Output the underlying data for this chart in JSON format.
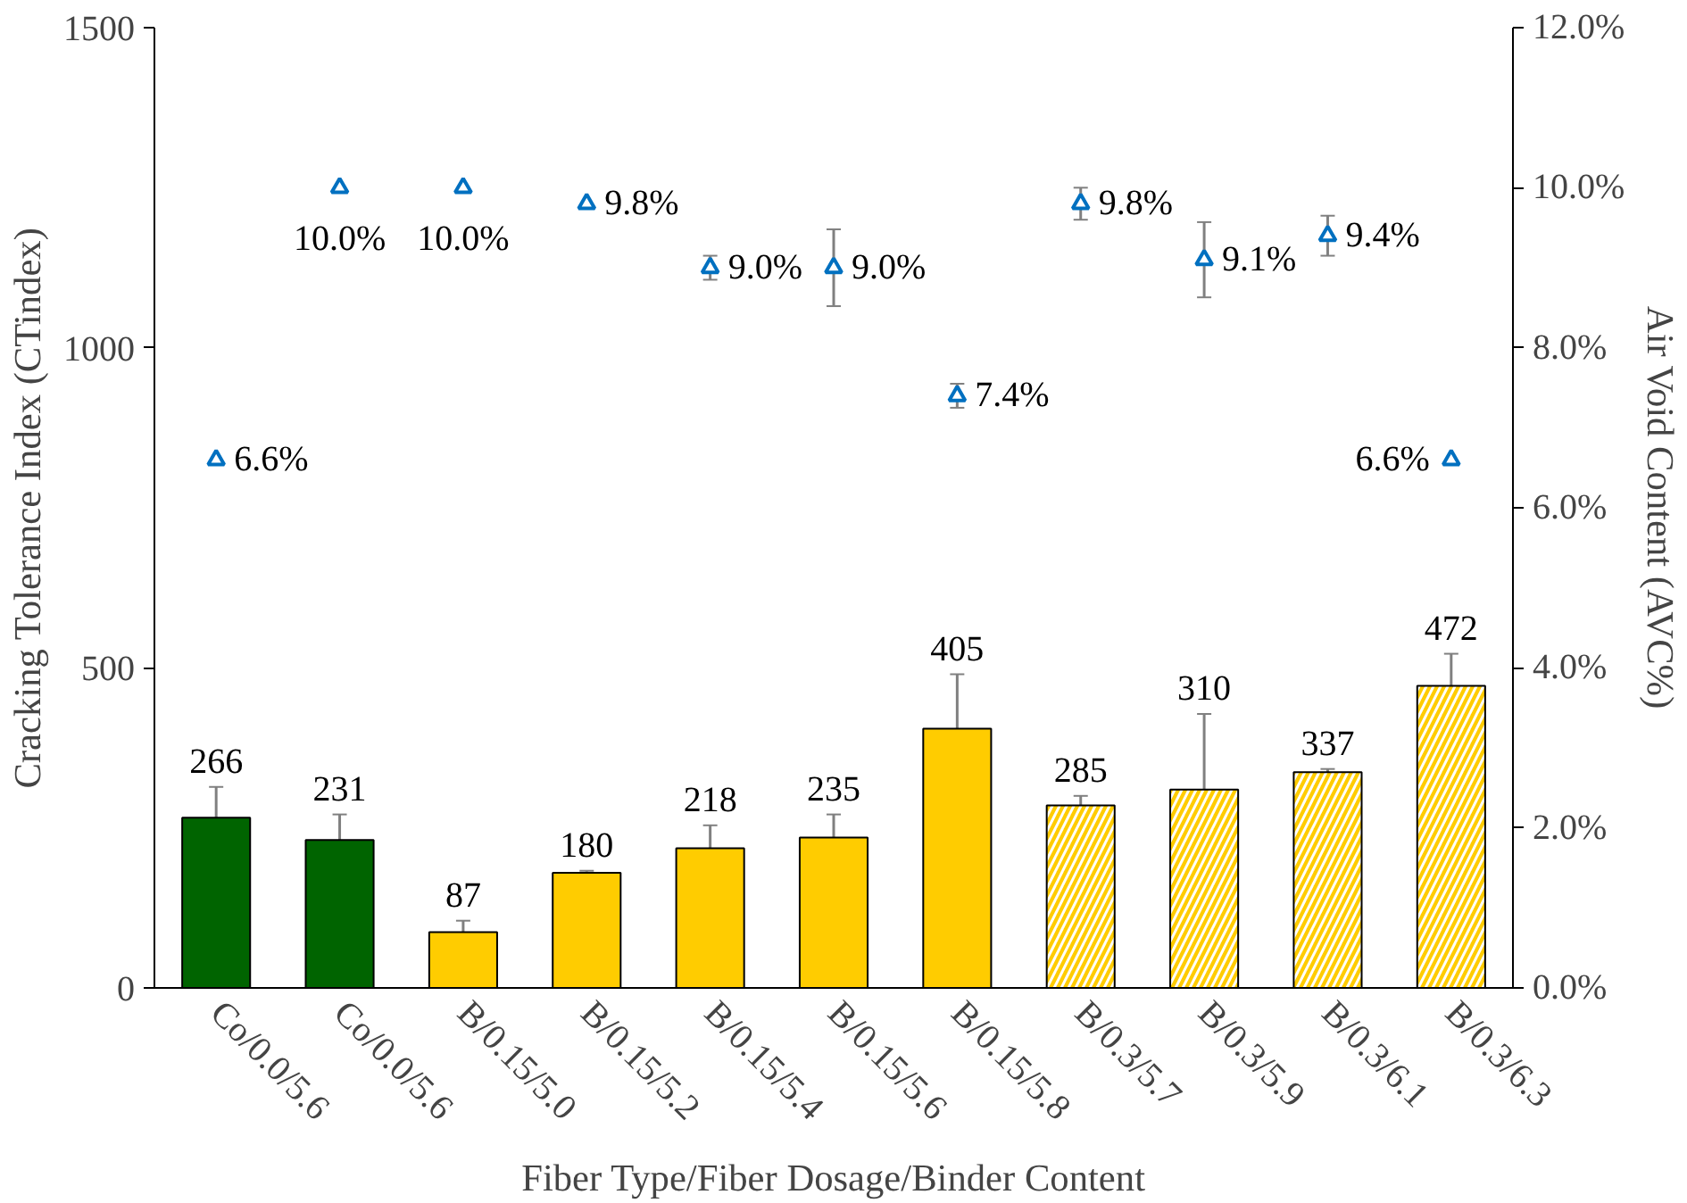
{
  "chart_data": {
    "type": "bar",
    "xlabel": "Fiber Type/Fiber Dosage/Binder Content",
    "ylabel": "Cracking Tolerance Index (CTindex)",
    "y2label": "Air Void Content (AVC%)",
    "categories": [
      "Co/0.0/5.6",
      "Co/0.0/5.6",
      "B/0.15/5.0",
      "B/0.15/5.2",
      "B/0.15/5.4",
      "B/0.15/5.6",
      "B/0.15/5.8",
      "B/0.3/5.7",
      "B/0.3/5.9",
      "B/0.3/6.1",
      "B/0.3/6.3"
    ],
    "series": [
      {
        "values": [
          266,
          231,
          87,
          180,
          218,
          235,
          405,
          285,
          310,
          337,
          472
        ],
        "colors": [
          "#006400",
          "#006400",
          "#ffcc00",
          "#ffcc00",
          "#ffcc00",
          "#ffcc00",
          "#ffcc00",
          "#ffcc00",
          "#ffcc00",
          "#ffcc00",
          "#ffcc00"
        ],
        "errors": [
          48,
          40,
          18,
          3,
          36,
          36,
          85,
          15,
          118,
          5,
          50
        ],
        "value_labels": [
          "266",
          "231",
          "87",
          "180",
          "218",
          "235",
          "405",
          "285",
          "310",
          "337",
          "472"
        ]
      },
      {
        "type": "scatter",
        "axis": "y2",
        "color": "#0070c0",
        "marker": "triangle",
        "values": [
          6.6,
          10.0,
          10.0,
          9.8,
          9.0,
          9.0,
          7.4,
          9.8,
          9.1,
          9.4,
          6.6
        ],
        "errors": [
          null,
          null,
          null,
          null,
          0.15,
          0.48,
          0.15,
          0.2,
          0.47,
          0.25,
          null
        ],
        "value_labels": [
          "6.6%",
          "10.0%",
          "10.0%",
          "9.8%",
          "9.0%",
          "9.0%",
          "7.4%",
          "9.8%",
          "9.1%",
          "9.4%",
          "6.6%"
        ]
      }
    ],
    "ylim": [
      0,
      1500
    ],
    "yticks": [
      0,
      500,
      1000,
      1500
    ],
    "y2lim": [
      0,
      12
    ],
    "y2ticks": [
      {
        "value": 0,
        "label": "0.0%"
      },
      {
        "value": 2,
        "label": "2.0%"
      },
      {
        "value": 4,
        "label": "4.0%"
      },
      {
        "value": 6,
        "label": "6.0%"
      },
      {
        "value": 8,
        "label": "8.0%"
      },
      {
        "value": 10,
        "label": "10.0%"
      },
      {
        "value": 12,
        "label": "12.0%"
      }
    ],
    "grid": false
  }
}
